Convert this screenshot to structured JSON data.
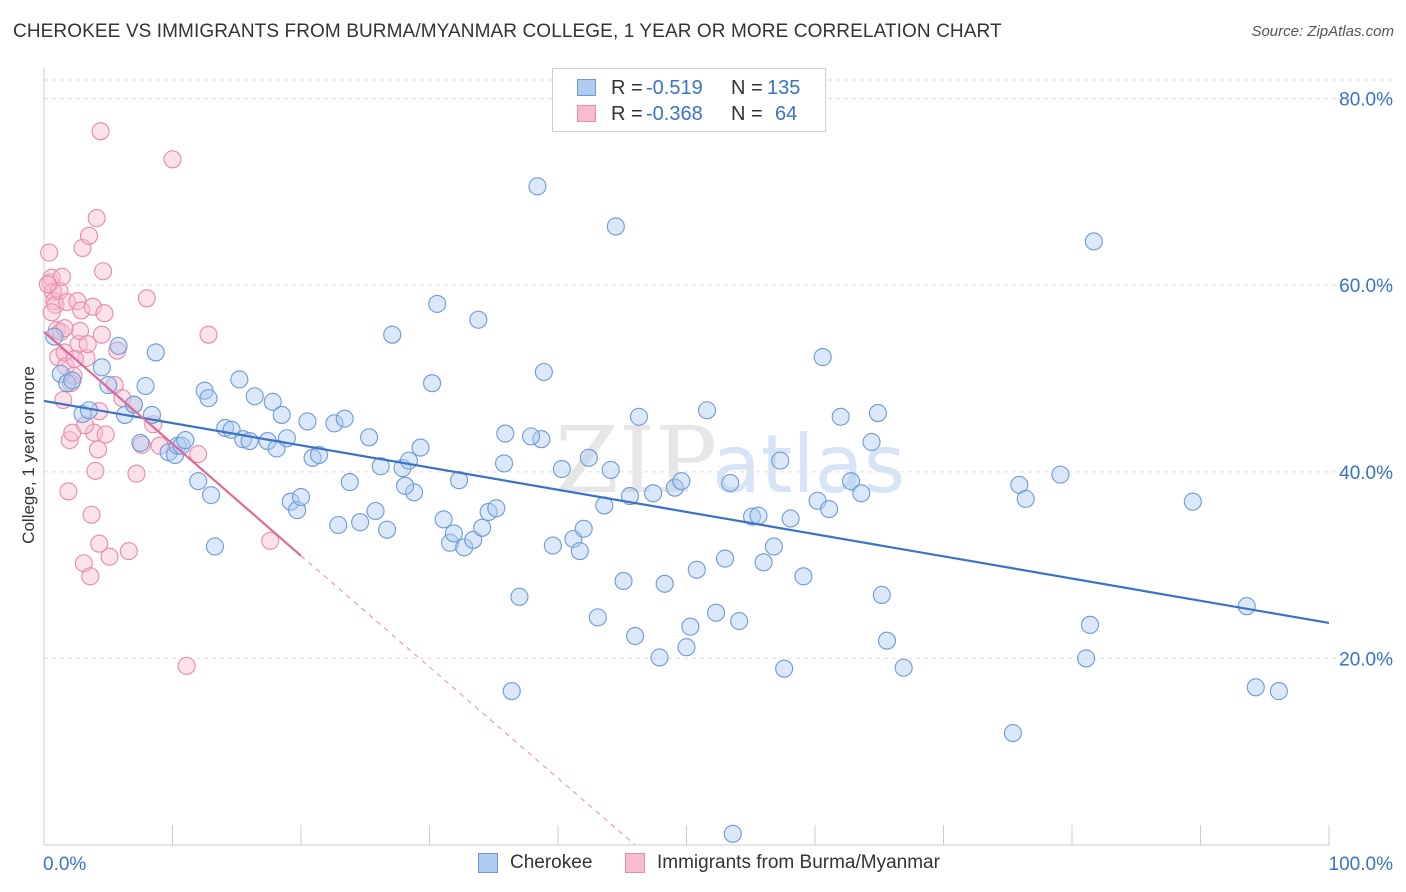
{
  "title": "CHEROKEE VS IMMIGRANTS FROM BURMA/MYANMAR COLLEGE, 1 YEAR OR MORE CORRELATION CHART",
  "source": "Source: ZipAtlas.com",
  "watermark": {
    "zip": "ZIP",
    "atlas": "atlas"
  },
  "colors": {
    "blue": "#3a72c8",
    "blue_fill": "#aecbf0",
    "blue_edge": "#6d9ad8",
    "pink": "#e06896",
    "pink_fill": "#f6bcd0",
    "pink_edge": "#e88aaa",
    "grid": "#dddddd",
    "axis_text": "#3a72c8"
  },
  "legend": {
    "rows": [
      {
        "r_label": "R =",
        "r_value": "-0.519",
        "n_label": "N =",
        "n_value": "135"
      },
      {
        "r_label": "R =",
        "r_value": "-0.368",
        "n_label": "N =",
        "n_value": "64"
      }
    ]
  },
  "bottom_legend": {
    "series1": "Cherokee",
    "series2": "Immigrants from Burma/Myanmar"
  },
  "chart_data": {
    "type": "scatter",
    "title": "CHEROKEE VS IMMIGRANTS FROM BURMA/MYANMAR COLLEGE, 1 YEAR OR MORE CORRELATION CHART",
    "xlabel": "",
    "ylabel": "College, 1 year or more",
    "xlim": [
      0,
      100
    ],
    "ylim": [
      0,
      82
    ],
    "x_tick_labels": [
      "0.0%",
      "100.0%"
    ],
    "y_ticks": [
      20,
      40,
      60,
      80
    ],
    "y_tick_labels": [
      "20.0%",
      "40.0%",
      "60.0%",
      "80.0%"
    ],
    "series": [
      {
        "name": "Cherokee",
        "r": -0.519,
        "n": 135,
        "trend": {
          "x0": 0,
          "y0": 47.6,
          "x1": 100,
          "y1": 23.8
        },
        "points": [
          [
            0.8,
            54.5
          ],
          [
            1.3,
            50.5
          ],
          [
            1.8,
            49.5
          ],
          [
            2.2,
            49.8
          ],
          [
            3.0,
            46.2
          ],
          [
            3.5,
            46.6
          ],
          [
            4.5,
            51.2
          ],
          [
            5.0,
            49.3
          ],
          [
            5.8,
            53.5
          ],
          [
            6.3,
            46.1
          ],
          [
            7.0,
            47.2
          ],
          [
            7.5,
            43.1
          ],
          [
            7.9,
            49.2
          ],
          [
            8.4,
            46.1
          ],
          [
            8.7,
            52.8
          ],
          [
            9.7,
            42.1
          ],
          [
            10.2,
            41.8
          ],
          [
            10.4,
            42.8
          ],
          [
            10.7,
            42.8
          ],
          [
            11.0,
            43.4
          ],
          [
            12.0,
            39.0
          ],
          [
            12.5,
            48.7
          ],
          [
            13.0,
            37.5
          ],
          [
            13.3,
            32.0
          ],
          [
            14.1,
            44.7
          ],
          [
            14.6,
            44.5
          ],
          [
            15.2,
            49.9
          ],
          [
            15.5,
            43.5
          ],
          [
            16.0,
            43.3
          ],
          [
            16.4,
            48.1
          ],
          [
            17.4,
            43.3
          ],
          [
            17.8,
            47.5
          ],
          [
            18.1,
            42.5
          ],
          [
            18.9,
            43.6
          ],
          [
            19.2,
            36.8
          ],
          [
            19.7,
            35.9
          ],
          [
            20.0,
            37.3
          ],
          [
            20.5,
            45.4
          ],
          [
            20.9,
            41.5
          ],
          [
            21.4,
            41.8
          ],
          [
            22.6,
            45.2
          ],
          [
            22.9,
            34.3
          ],
          [
            23.4,
            45.7
          ],
          [
            23.8,
            38.9
          ],
          [
            24.6,
            34.6
          ],
          [
            25.3,
            43.7
          ],
          [
            25.8,
            35.8
          ],
          [
            26.2,
            40.6
          ],
          [
            26.7,
            33.8
          ],
          [
            27.1,
            54.7
          ],
          [
            27.9,
            40.4
          ],
          [
            28.4,
            41.2
          ],
          [
            28.8,
            37.8
          ],
          [
            29.3,
            42.6
          ],
          [
            30.2,
            49.5
          ],
          [
            30.6,
            58.0
          ],
          [
            31.1,
            34.9
          ],
          [
            31.6,
            32.4
          ],
          [
            31.9,
            33.4
          ],
          [
            32.3,
            39.1
          ],
          [
            32.7,
            31.9
          ],
          [
            33.4,
            32.7
          ],
          [
            33.8,
            56.3
          ],
          [
            34.1,
            34.0
          ],
          [
            34.6,
            35.7
          ],
          [
            35.2,
            36.1
          ],
          [
            35.8,
            40.9
          ],
          [
            35.9,
            44.1
          ],
          [
            36.4,
            16.5
          ],
          [
            37.0,
            26.6
          ],
          [
            38.4,
            70.6
          ],
          [
            38.7,
            43.5
          ],
          [
            38.9,
            50.7
          ],
          [
            39.6,
            32.1
          ],
          [
            40.3,
            40.3
          ],
          [
            41.2,
            32.8
          ],
          [
            41.7,
            31.5
          ],
          [
            42.0,
            33.9
          ],
          [
            42.4,
            41.5
          ],
          [
            43.1,
            24.4
          ],
          [
            43.6,
            36.4
          ],
          [
            44.1,
            40.2
          ],
          [
            44.5,
            66.3
          ],
          [
            45.1,
            28.3
          ],
          [
            45.6,
            37.4
          ],
          [
            46.0,
            22.4
          ],
          [
            46.3,
            45.9
          ],
          [
            47.4,
            37.7
          ],
          [
            47.9,
            20.1
          ],
          [
            48.3,
            28.0
          ],
          [
            49.1,
            38.3
          ],
          [
            49.6,
            39.0
          ],
          [
            50.0,
            21.2
          ],
          [
            50.3,
            23.4
          ],
          [
            50.8,
            29.5
          ],
          [
            51.6,
            46.6
          ],
          [
            52.3,
            24.9
          ],
          [
            53.0,
            30.7
          ],
          [
            53.4,
            38.8
          ],
          [
            54.1,
            24.0
          ],
          [
            55.1,
            35.2
          ],
          [
            55.6,
            35.3
          ],
          [
            56.0,
            30.3
          ],
          [
            56.8,
            32.0
          ],
          [
            57.6,
            18.9
          ],
          [
            58.1,
            35.0
          ],
          [
            59.1,
            28.8
          ],
          [
            60.2,
            36.9
          ],
          [
            60.6,
            52.3
          ],
          [
            61.1,
            36.0
          ],
          [
            62.0,
            45.9
          ],
          [
            62.8,
            39.0
          ],
          [
            63.6,
            37.7
          ],
          [
            64.4,
            43.2
          ],
          [
            64.9,
            46.3
          ],
          [
            65.2,
            26.8
          ],
          [
            65.6,
            21.9
          ],
          [
            66.9,
            19.0
          ],
          [
            75.4,
            12.0
          ],
          [
            75.9,
            38.6
          ],
          [
            76.4,
            37.1
          ],
          [
            79.1,
            39.7
          ],
          [
            81.1,
            20.0
          ],
          [
            81.4,
            23.6
          ],
          [
            81.7,
            64.7
          ],
          [
            89.4,
            36.8
          ],
          [
            93.6,
            25.6
          ],
          [
            94.3,
            16.9
          ],
          [
            96.1,
            16.5
          ],
          [
            53.6,
            1.2
          ],
          [
            12.8,
            47.9
          ],
          [
            18.5,
            46.1
          ],
          [
            28.1,
            38.5
          ],
          [
            37.9,
            43.8
          ],
          [
            57.3,
            41.2
          ]
        ]
      },
      {
        "name": "Immigrants from Burma/Myanmar",
        "r": -0.368,
        "n": 64,
        "trend": {
          "x0": 0,
          "y0": 55.0,
          "x1": 20,
          "y1": 31.0
        },
        "trend_extension": {
          "x0": 20,
          "y0": 31.0,
          "x1": 46,
          "y1": 0
        },
        "points": [
          [
            0.4,
            63.5
          ],
          [
            0.5,
            60.3
          ],
          [
            0.6,
            60.8
          ],
          [
            0.7,
            59.3
          ],
          [
            0.8,
            58.3
          ],
          [
            0.9,
            57.9
          ],
          [
            1.0,
            55.2
          ],
          [
            1.1,
            52.3
          ],
          [
            1.2,
            59.4
          ],
          [
            1.3,
            55.0
          ],
          [
            1.4,
            60.9
          ],
          [
            1.5,
            47.7
          ],
          [
            1.6,
            52.8
          ],
          [
            1.7,
            51.3
          ],
          [
            1.8,
            58.2
          ],
          [
            1.9,
            37.9
          ],
          [
            2.0,
            43.4
          ],
          [
            2.1,
            49.5
          ],
          [
            2.2,
            44.2
          ],
          [
            2.3,
            50.3
          ],
          [
            2.6,
            58.3
          ],
          [
            2.7,
            53.7
          ],
          [
            2.8,
            55.1
          ],
          [
            2.9,
            57.3
          ],
          [
            3.0,
            64.0
          ],
          [
            3.1,
            30.2
          ],
          [
            3.3,
            52.2
          ],
          [
            3.4,
            53.7
          ],
          [
            3.5,
            65.3
          ],
          [
            3.6,
            28.8
          ],
          [
            3.7,
            35.4
          ],
          [
            3.8,
            57.7
          ],
          [
            3.9,
            44.2
          ],
          [
            4.0,
            40.1
          ],
          [
            4.1,
            67.2
          ],
          [
            4.2,
            42.4
          ],
          [
            4.3,
            32.3
          ],
          [
            4.4,
            76.5
          ],
          [
            4.5,
            54.7
          ],
          [
            4.6,
            61.5
          ],
          [
            4.7,
            57.0
          ],
          [
            4.8,
            44.0
          ],
          [
            5.1,
            30.9
          ],
          [
            5.5,
            49.3
          ],
          [
            5.7,
            53.0
          ],
          [
            6.1,
            47.9
          ],
          [
            6.6,
            31.5
          ],
          [
            7.0,
            47.2
          ],
          [
            7.2,
            39.8
          ],
          [
            7.6,
            42.9
          ],
          [
            8.0,
            58.6
          ],
          [
            8.5,
            45.1
          ],
          [
            9.0,
            42.8
          ],
          [
            10.0,
            73.5
          ],
          [
            11.1,
            19.2
          ],
          [
            12.0,
            41.9
          ],
          [
            12.8,
            54.7
          ],
          [
            17.6,
            32.6
          ],
          [
            0.3,
            60.1
          ],
          [
            0.6,
            57.1
          ],
          [
            1.6,
            55.4
          ],
          [
            2.4,
            52.1
          ],
          [
            3.2,
            45.0
          ],
          [
            4.3,
            46.5
          ]
        ]
      }
    ]
  }
}
